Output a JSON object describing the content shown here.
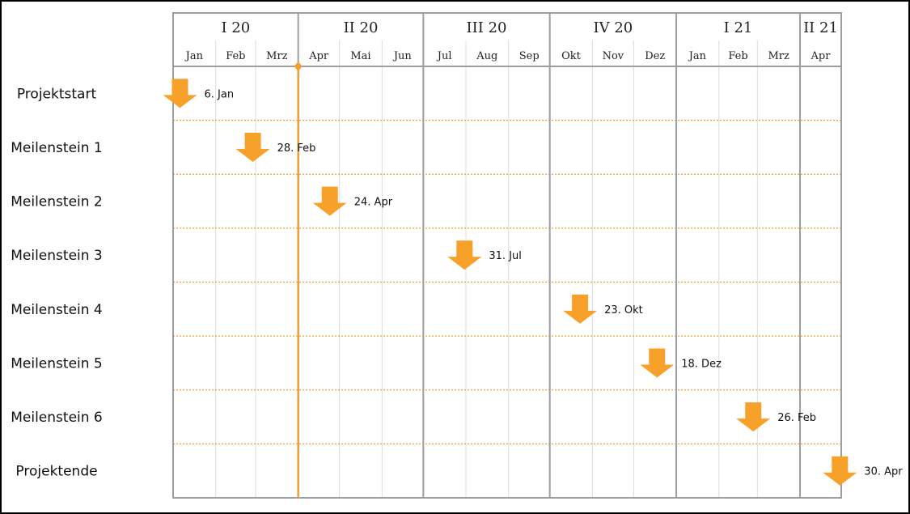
{
  "chart_data": {
    "type": "milestone-timeline",
    "quarters": [
      {
        "label": "I 20",
        "months": [
          "Jan",
          "Feb",
          "Mrz"
        ]
      },
      {
        "label": "II 20",
        "months": [
          "Apr",
          "Mai",
          "Jun"
        ]
      },
      {
        "label": "III 20",
        "months": [
          "Jul",
          "Aug",
          "Sep"
        ]
      },
      {
        "label": "IV 20",
        "months": [
          "Okt",
          "Nov",
          "Dez"
        ]
      },
      {
        "label": "I 21",
        "months": [
          "Jan",
          "Feb",
          "Mrz"
        ]
      },
      {
        "label": "II 21",
        "months": [
          "Apr"
        ]
      }
    ],
    "start_date": "2020-01-01",
    "end_date": "2021-04-30",
    "today_marker": "2020-04-01",
    "milestones": [
      {
        "label": "Projektstart",
        "date": "2020-01-06",
        "date_label": "6. Jan"
      },
      {
        "label": "Meilenstein 1",
        "date": "2020-02-28",
        "date_label": "28. Feb"
      },
      {
        "label": "Meilenstein 2",
        "date": "2020-04-24",
        "date_label": "24. Apr"
      },
      {
        "label": "Meilenstein 3",
        "date": "2020-07-31",
        "date_label": "31. Jul"
      },
      {
        "label": "Meilenstein 4",
        "date": "2020-10-23",
        "date_label": "23. Okt"
      },
      {
        "label": "Meilenstein 5",
        "date": "2020-12-18",
        "date_label": "18. Dez"
      },
      {
        "label": "Meilenstein 6",
        "date": "2021-02-26",
        "date_label": "26. Feb"
      },
      {
        "label": "Projektende",
        "date": "2021-04-30",
        "date_label": "30. Apr"
      }
    ],
    "colors": {
      "accent": "#f7a12a",
      "today_line": "#f0a030",
      "grid_major": "#9a9fa3",
      "grid_minor": "#dcdcdc",
      "row_separator": "#f0a030"
    }
  }
}
